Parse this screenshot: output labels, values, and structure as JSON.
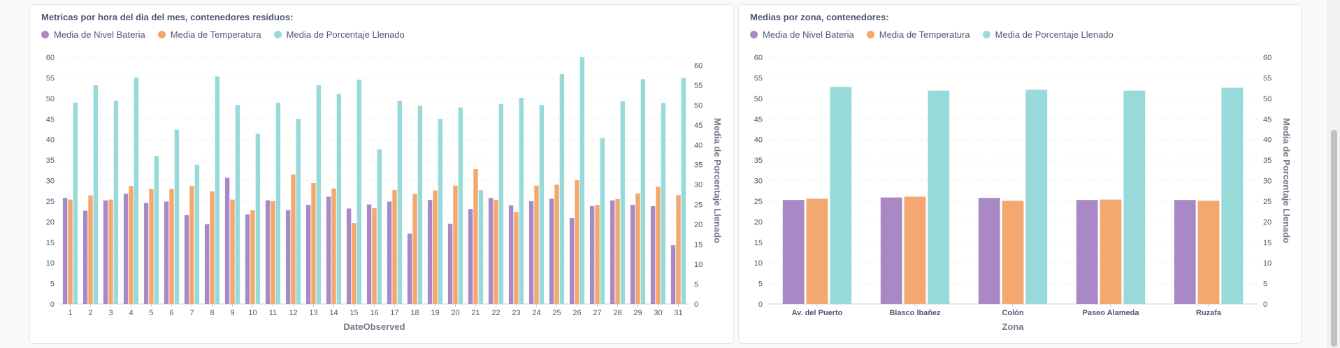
{
  "colors": {
    "bateria": "#a989c5",
    "temperatura": "#f2a86f",
    "porcentaje": "#98d9d9"
  },
  "left_card": {
    "title": "Metricas por hora del dia del mes, contenedores residuos:",
    "legend": [
      "Media de Nivel Bateria",
      "Media de Temperatura",
      "Media de Porcentaje Llenado"
    ]
  },
  "right_card": {
    "title": "Medias por zona, contenedores:",
    "legend": [
      "Media de Nivel Bateria",
      "Media de Temperatura",
      "Media de Porcentaje Llenado"
    ]
  },
  "chart_data": [
    {
      "type": "bar",
      "title": "Metricas por hora del dia del mes, contenedores residuos:",
      "xlabel": "DateObserved",
      "ylabel": "",
      "y2label": "Media de Porcentaje Llenado",
      "ylim": [
        0,
        60
      ],
      "y2lim": [
        0,
        62
      ],
      "yticks": [
        0,
        5,
        10,
        15,
        20,
        25,
        30,
        35,
        40,
        45,
        50,
        55,
        60
      ],
      "y2ticks": [
        0,
        5,
        10,
        15,
        20,
        25,
        30,
        35,
        40,
        45,
        50,
        55,
        60
      ],
      "grid": true,
      "legend_position": "top-left",
      "categories": [
        "1",
        "2",
        "3",
        "4",
        "5",
        "6",
        "7",
        "8",
        "9",
        "10",
        "11",
        "12",
        "13",
        "14",
        "15",
        "16",
        "17",
        "18",
        "19",
        "20",
        "21",
        "22",
        "23",
        "24",
        "25",
        "26",
        "27",
        "28",
        "29",
        "30",
        "31"
      ],
      "series": [
        {
          "name": "Media de Nivel Bateria",
          "axis": "left",
          "values": [
            25.8,
            22.7,
            25.2,
            26.8,
            24.6,
            24.9,
            21.6,
            19.4,
            30.7,
            21.8,
            25.2,
            22.8,
            24.1,
            26.1,
            23.2,
            24.2,
            24.9,
            17.1,
            25.3,
            19.5,
            23.1,
            25.8,
            24.0,
            25.0,
            25.6,
            20.9,
            23.8,
            25.2,
            24.1,
            23.8,
            14.3
          ]
        },
        {
          "name": "Media de Temperatura",
          "axis": "left",
          "values": [
            25.4,
            26.4,
            25.4,
            28.7,
            28.0,
            28.0,
            28.7,
            27.4,
            25.4,
            22.8,
            25.0,
            31.5,
            29.4,
            28.1,
            19.7,
            23.3,
            27.7,
            26.8,
            27.6,
            28.8,
            32.8,
            25.3,
            22.4,
            28.8,
            29.0,
            30.1,
            24.1,
            25.5,
            26.9,
            28.5,
            26.5
          ]
        },
        {
          "name": "Media de Porcentaje Llenado",
          "axis": "right",
          "values": [
            50.6,
            55.0,
            51.1,
            56.9,
            37.2,
            43.8,
            35.0,
            57.2,
            50.0,
            42.8,
            50.6,
            46.5,
            55.0,
            52.8,
            56.4,
            38.9,
            51.1,
            49.8,
            46.5,
            49.4,
            28.6,
            50.3,
            51.8,
            50.0,
            57.8,
            62.0,
            41.7,
            51.0,
            56.5,
            50.5,
            56.8
          ]
        }
      ]
    },
    {
      "type": "bar",
      "title": "Medias por zona, contenedores:",
      "xlabel": "Zona",
      "ylabel": "",
      "y2label": "Media de Porcentaje Llenado",
      "ylim": [
        0,
        60
      ],
      "y2lim": [
        0,
        60
      ],
      "yticks": [
        0,
        5,
        10,
        15,
        20,
        25,
        30,
        35,
        40,
        45,
        50,
        55,
        60
      ],
      "y2ticks": [
        0,
        5,
        10,
        15,
        20,
        25,
        30,
        35,
        40,
        45,
        50,
        55,
        60
      ],
      "grid": true,
      "legend_position": "top-left",
      "categories": [
        "Av. del Puerto",
        "Blasco Ibañez",
        "Colón",
        "Paseo Alameda",
        "Ruzafa"
      ],
      "series": [
        {
          "name": "Media de Nivel Bateria",
          "axis": "left",
          "values": [
            25.3,
            25.9,
            25.8,
            25.3,
            25.3
          ]
        },
        {
          "name": "Media de Temperatura",
          "axis": "left",
          "values": [
            25.6,
            26.1,
            25.1,
            25.4,
            25.1
          ]
        },
        {
          "name": "Media de Porcentaje Llenado",
          "axis": "right",
          "values": [
            52.8,
            51.9,
            52.1,
            51.9,
            52.6
          ]
        }
      ]
    }
  ]
}
